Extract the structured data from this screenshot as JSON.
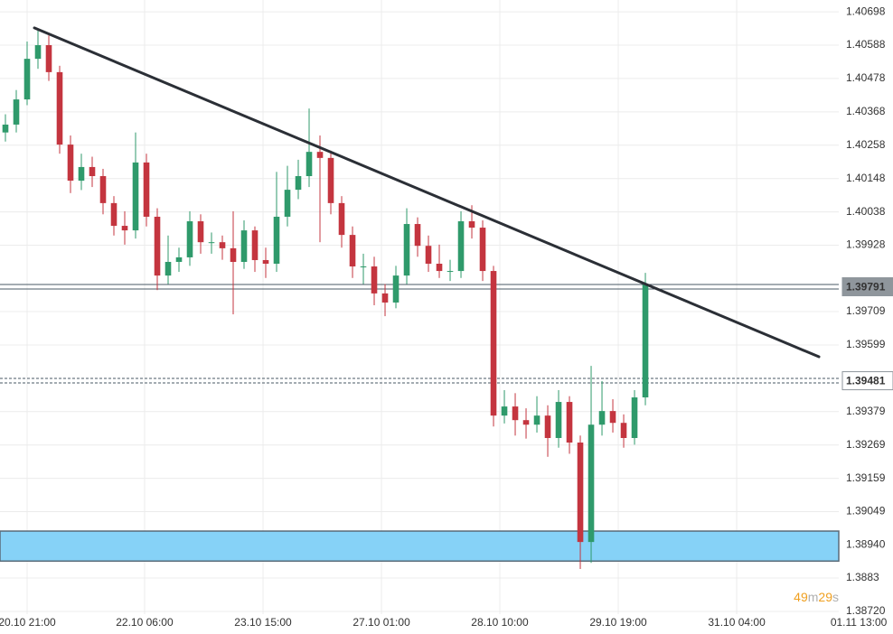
{
  "chart_data": {
    "type": "candlestick",
    "open": [
      1.403,
      1.40326,
      1.40409,
      1.40543,
      1.40588,
      1.40499,
      1.4026,
      1.40141,
      1.40186,
      1.40156,
      1.40067,
      1.39992,
      1.39977,
      1.40201,
      1.40022,
      1.39828,
      1.39873,
      1.39888,
      1.40007,
      1.39938,
      1.39938,
      1.39918,
      1.39873,
      1.39977,
      1.39879,
      1.39867,
      1.40022,
      1.40111,
      1.40156,
      1.40236,
      1.40216,
      1.40067,
      1.39962,
      1.39858,
      1.39858,
      1.39769,
      1.39739,
      1.39828,
      1.39998,
      1.39926,
      1.39867,
      1.39843,
      1.39843,
      1.40007,
      1.39986,
      1.39843,
      1.39366,
      1.39396,
      1.39351,
      1.39336,
      1.39366,
      1.39292,
      1.39411,
      1.39277,
      1.38949,
      1.39336,
      1.39381,
      1.39342,
      1.39292,
      1.39426
    ],
    "high": [
      1.4036,
      1.4044,
      1.406,
      1.40638,
      1.4062,
      1.4052,
      1.4029,
      1.4023,
      1.4022,
      1.4018,
      1.4009,
      1.4004,
      1.403,
      1.4023,
      1.4005,
      1.3996,
      1.3992,
      1.4004,
      1.4003,
      1.3997,
      1.3996,
      1.4004,
      1.4001,
      1.3999,
      1.3992,
      1.4017,
      1.4019,
      1.4021,
      1.40379,
      1.4029,
      1.4024,
      1.4009,
      1.3999,
      1.399,
      1.3989,
      1.398,
      1.3986,
      1.4005,
      1.4002,
      1.3996,
      1.3993,
      1.3988,
      1.4004,
      1.4006,
      1.4001,
      1.3986,
      1.3945,
      1.3944,
      1.3939,
      1.3943,
      1.394,
      1.3945,
      1.3943,
      1.393,
      1.3953,
      1.3948,
      1.3942,
      1.3937,
      1.3945,
      1.39837
    ],
    "low": [
      1.4027,
      1.403,
      1.4039,
      1.4051,
      1.4047,
      1.4023,
      1.401,
      1.4011,
      1.4012,
      1.4003,
      1.3996,
      1.3993,
      1.3995,
      1.3999,
      1.3978,
      1.398,
      1.3984,
      1.3986,
      1.399,
      1.399,
      1.3988,
      1.397,
      1.3985,
      1.3984,
      1.3982,
      1.3984,
      1.3999,
      1.4008,
      1.4012,
      1.39938,
      1.4003,
      1.3992,
      1.3982,
      1.398,
      1.3973,
      1.39694,
      1.3972,
      1.398,
      1.3989,
      1.3984,
      1.3982,
      1.3981,
      1.3982,
      1.3995,
      1.3981,
      1.3933,
      1.3934,
      1.393,
      1.3929,
      1.3931,
      1.3923,
      1.3926,
      1.3924,
      1.3886,
      1.3888,
      1.393,
      1.3931,
      1.3926,
      1.3927,
      1.394
    ],
    "close": [
      1.40326,
      1.40409,
      1.40543,
      1.40588,
      1.40499,
      1.4026,
      1.40141,
      1.40186,
      1.40156,
      1.40067,
      1.39992,
      1.39977,
      1.40201,
      1.40022,
      1.39828,
      1.39873,
      1.39888,
      1.40007,
      1.39938,
      1.39938,
      1.39918,
      1.39873,
      1.39977,
      1.39879,
      1.39867,
      1.40022,
      1.40111,
      1.40156,
      1.40236,
      1.40216,
      1.40067,
      1.39962,
      1.39858,
      1.39858,
      1.39769,
      1.39739,
      1.39828,
      1.39998,
      1.39926,
      1.39867,
      1.39843,
      1.39843,
      1.40007,
      1.39986,
      1.39843,
      1.39366,
      1.39396,
      1.39351,
      1.39336,
      1.39366,
      1.39292,
      1.39411,
      1.39277,
      1.38949,
      1.39336,
      1.39381,
      1.39342,
      1.39292,
      1.39426,
      1.39798
    ],
    "up_color": "#2f9a6b",
    "down_color": "#c4353f",
    "xlim": [
      0,
      82.33
    ],
    "xticks": [
      {
        "value": 2.5,
        "label": "20.10 21:00"
      },
      {
        "value": 13.33,
        "label": "22.10 06:00"
      },
      {
        "value": 24.25,
        "label": "23.10 15:00"
      },
      {
        "value": 35.17,
        "label": "27.10 01:00"
      },
      {
        "value": 46.08,
        "label": "28.10 10:00"
      },
      {
        "value": 57,
        "label": "29.10 19:00"
      },
      {
        "value": 67.92,
        "label": "31.10 04:00"
      },
      {
        "value": 79.17,
        "label": "01.11 13:00"
      }
    ],
    "ylim": [
      1.38711,
      1.40737
    ],
    "yticks": [
      1.40698,
      1.40588,
      1.40478,
      1.40368,
      1.40258,
      1.40148,
      1.40038,
      1.39928,
      1.39709,
      1.39599,
      1.39379,
      1.39269,
      1.39159,
      1.39049,
      {
        "value": 1.3894,
        "label": "1.38940"
      },
      1.3883,
      {
        "value": 1.3872,
        "label": "1.38720"
      }
    ],
    "grid": true,
    "trendline": {
      "x": [
        3.17,
        75.5
      ],
      "y": [
        1.40645,
        1.3956
      ],
      "color": "#2b2f36"
    },
    "levels": [
      {
        "value": 1.39791,
        "style": "solid"
      },
      {
        "value": 1.39481,
        "style": "dashed"
      }
    ],
    "zone": {
      "low": 1.38886,
      "high": 1.38985,
      "color": "#86d2f7"
    },
    "countdown": [
      "49",
      "m",
      "29",
      "s"
    ]
  }
}
